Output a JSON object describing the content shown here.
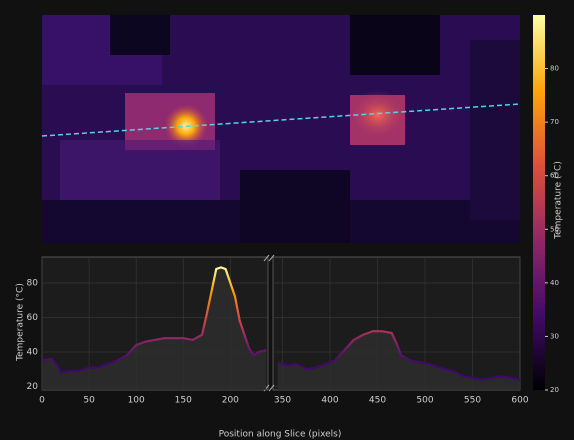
{
  "chart_data": [
    {
      "type": "heatmap-image",
      "colorbar_label": "Temperature (°C)",
      "clim": [
        20,
        90
      ],
      "cticks": [
        20,
        30,
        40,
        50,
        60,
        70,
        80
      ],
      "colormap": [
        "#000004",
        "#420a68",
        "#932667",
        "#dd513a",
        "#fca50a",
        "#fcffa4"
      ]
    },
    {
      "type": "line",
      "xlabel": "Position along Slice (pixels)",
      "ylabel": "Temperature (°C)",
      "x_segments": [
        [
          0,
          240
        ],
        [
          340,
          600
        ]
      ],
      "ylim": [
        18,
        95
      ],
      "yticks": [
        20,
        40,
        60,
        80
      ],
      "xticks": [
        0,
        50,
        100,
        150,
        200,
        350,
        400,
        450,
        500,
        550,
        600
      ],
      "grid": true,
      "x": [
        0,
        10,
        15,
        20,
        30,
        40,
        50,
        60,
        70,
        80,
        90,
        100,
        110,
        120,
        130,
        140,
        150,
        160,
        170,
        175,
        180,
        185,
        190,
        195,
        200,
        205,
        210,
        220,
        225,
        230,
        238,
        null,
        345,
        355,
        365,
        375,
        385,
        395,
        405,
        415,
        425,
        435,
        445,
        455,
        465,
        470,
        475,
        485,
        495,
        505,
        520,
        530,
        540,
        550,
        560,
        570,
        580,
        590,
        600
      ],
      "values": [
        35,
        36,
        33,
        28,
        29,
        29,
        31,
        31,
        33,
        35,
        38,
        44,
        46,
        47,
        48,
        48,
        48,
        47,
        50,
        62,
        75,
        88,
        89,
        88,
        80,
        72,
        58,
        42,
        38,
        40,
        41,
        null,
        34,
        32,
        33,
        30,
        31,
        33,
        35,
        41,
        47,
        50,
        52,
        52,
        51,
        45,
        38,
        35,
        34,
        33,
        30,
        29,
        26,
        25,
        24,
        25,
        26,
        25,
        24
      ]
    }
  ]
}
